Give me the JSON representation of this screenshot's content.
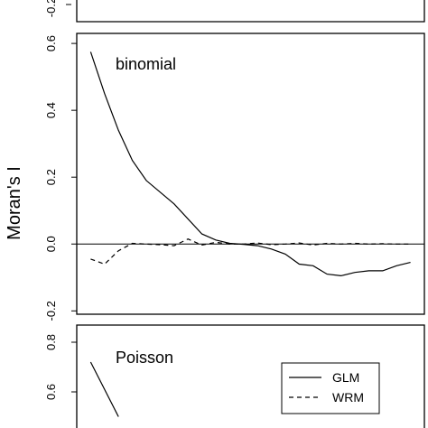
{
  "ylabel": "Moran's I",
  "legend": {
    "placement": "bottom-right of bottom panel",
    "entries": [
      {
        "label": "GLM",
        "linestyle": "solid"
      },
      {
        "label": "WRM",
        "linestyle": "dashed"
      }
    ]
  },
  "chart_data": [
    {
      "type": "line",
      "position": "top (partially visible)",
      "title": "",
      "ytick_labels": [
        "-0.2"
      ],
      "series": []
    },
    {
      "type": "line",
      "position": "middle",
      "title": "binomial",
      "ylim": [
        -0.21,
        0.63
      ],
      "yticks": [
        -0.2,
        0.0,
        0.2,
        0.4,
        0.6
      ],
      "ytick_labels": [
        "-0.2",
        "0.0",
        "0.2",
        "0.4",
        "0.6"
      ],
      "xlim": [
        0.5,
        13
      ],
      "reference_line": 0,
      "series": [
        {
          "name": "GLM",
          "linestyle": "solid",
          "x": [
            1,
            1.5,
            2,
            2.5,
            3,
            4,
            5,
            5.5,
            6,
            6.5,
            7,
            7.5,
            8,
            8.5,
            9,
            9.5,
            10,
            10.5,
            11,
            11.5,
            12,
            12.5
          ],
          "y": [
            0.575,
            0.45,
            0.34,
            0.25,
            0.19,
            0.12,
            0.03,
            0.012,
            0.002,
            -0.001,
            -0.005,
            -0.015,
            -0.03,
            -0.06,
            -0.065,
            -0.09,
            -0.095,
            -0.085,
            -0.08,
            -0.08,
            -0.065,
            -0.055
          ]
        },
        {
          "name": "WRM",
          "linestyle": "dashed",
          "x": [
            1,
            1.5,
            2,
            2.5,
            3,
            3.5,
            4,
            4.5,
            5,
            5.5,
            6,
            6.5,
            7,
            7.5,
            8,
            8.5,
            9,
            9.5,
            10,
            10.5,
            11,
            11.5,
            12,
            12.5
          ],
          "y": [
            -0.045,
            -0.06,
            -0.02,
            0.002,
            0.0,
            -0.002,
            -0.005,
            0.015,
            -0.003,
            0.005,
            0.0,
            0.0,
            0.003,
            -0.002,
            0.0,
            0.003,
            -0.003,
            0.002,
            0.0,
            0.002,
            0.0,
            0.001,
            0.0,
            0.0
          ]
        }
      ]
    },
    {
      "type": "line",
      "position": "bottom (partially visible)",
      "title": "Poisson",
      "yticks": [
        0.6,
        0.8
      ],
      "ytick_labels": [
        "0.6",
        "0.8"
      ],
      "series": [
        {
          "name": "GLM",
          "linestyle": "solid",
          "x": [
            1,
            2
          ],
          "y": [
            0.72,
            0.5
          ]
        }
      ]
    }
  ]
}
